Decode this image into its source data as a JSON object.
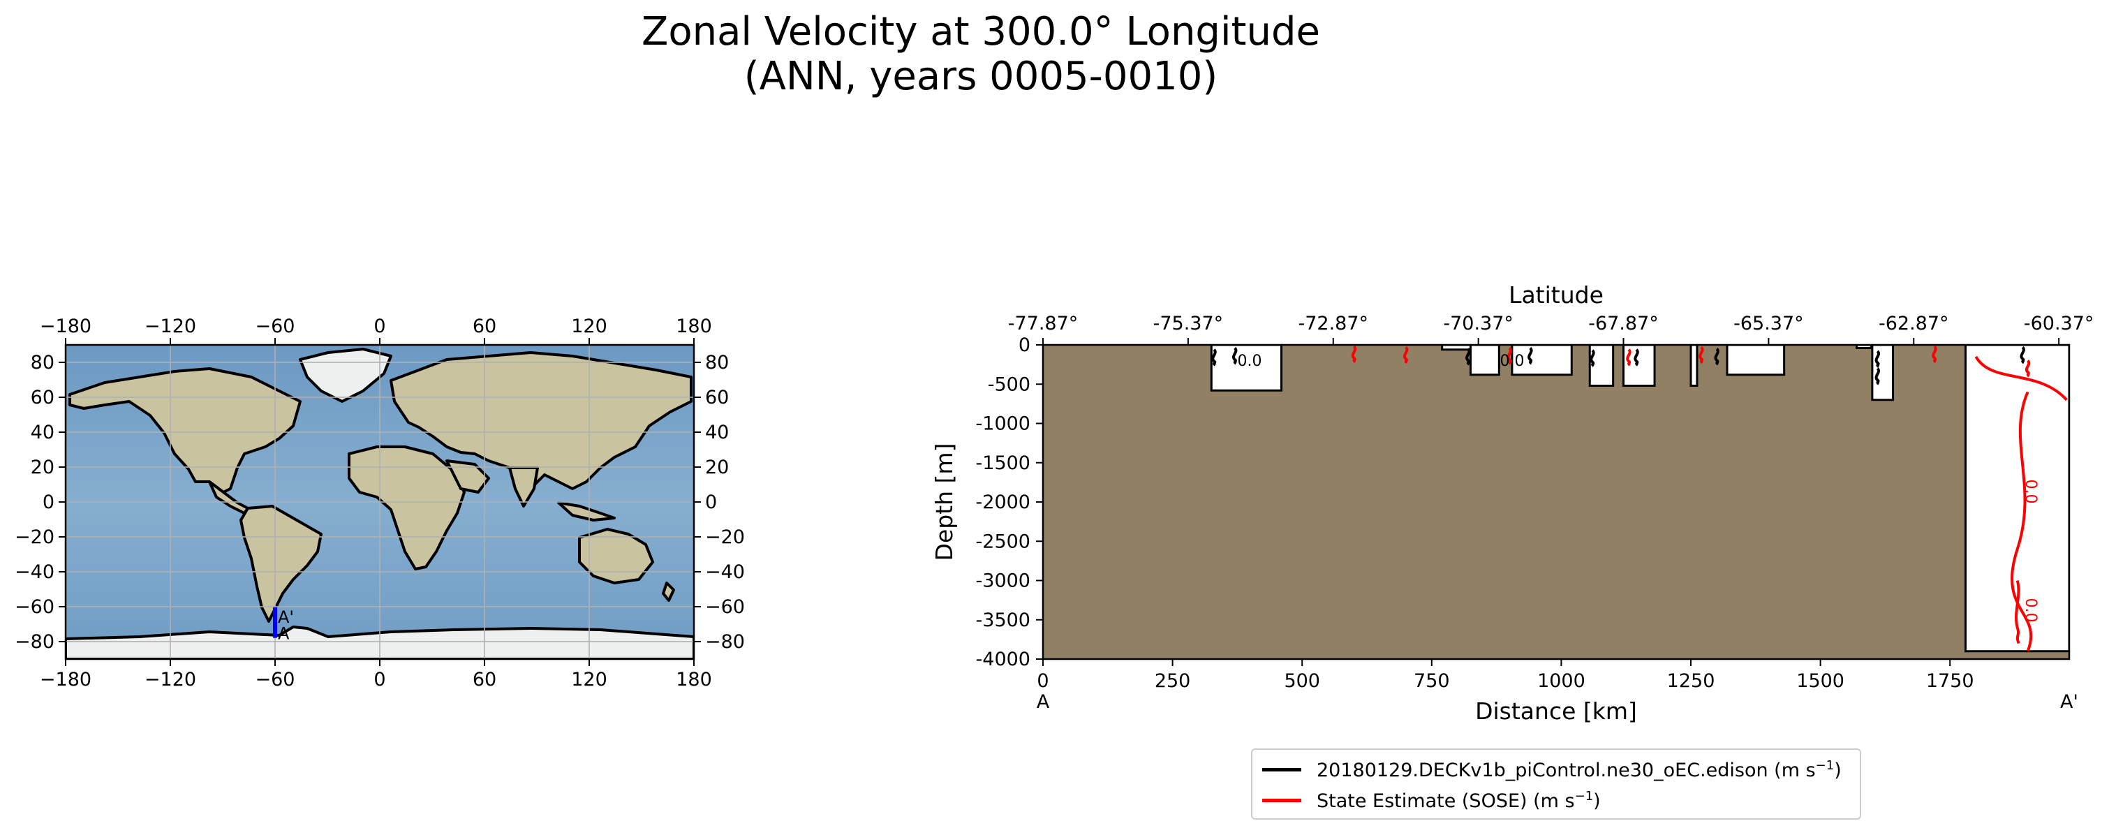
{
  "title": {
    "line1": "Zonal Velocity at 300.0° Longitude",
    "line2": "(ANN, years 0005-0010)"
  },
  "colors": {
    "land": "#928064",
    "model": "#000000",
    "obs": "#ff0000",
    "transect": "#0000ff",
    "ocean": "#7fa7c8"
  },
  "chart_data": [
    {
      "type": "map",
      "name": "transect-location-map",
      "projection": "PlateCarree",
      "xlim": [
        -180,
        180
      ],
      "ylim": [
        -90,
        90
      ],
      "x_ticks": [
        -180,
        -120,
        -60,
        0,
        60,
        120,
        180
      ],
      "y_ticks": [
        80,
        60,
        40,
        20,
        0,
        -20,
        -40,
        -60,
        -80
      ],
      "x_tick_labels": [
        "−180",
        "−120",
        "−60",
        "0",
        "60",
        "120",
        "180"
      ],
      "y_tick_labels": [
        "80",
        "60",
        "40",
        "20",
        "0",
        "−20",
        "−40",
        "−60",
        "−80"
      ],
      "grid": true,
      "transect": {
        "longitude": -60,
        "lat_start": -77.87,
        "lat_end": -60.37,
        "start_label": "A",
        "end_label": "A'"
      }
    },
    {
      "type": "contour",
      "name": "transect-section",
      "xlabel": "Distance [km]",
      "ylabel": "Depth [m]",
      "top_xlabel": "Latitude",
      "xlim": [
        0,
        1980
      ],
      "ylim": [
        -4000,
        0
      ],
      "x_ticks": [
        0,
        250,
        500,
        750,
        1000,
        1250,
        1500,
        1750
      ],
      "x_tick_labels": [
        "0",
        "250",
        "500",
        "750",
        "1000",
        "1250",
        "1500",
        "1750"
      ],
      "y_ticks": [
        0,
        -500,
        -1000,
        -1500,
        -2000,
        -2500,
        -3000,
        -3500,
        -4000
      ],
      "y_tick_labels": [
        "0",
        "-500",
        "-1000",
        "-1500",
        "-2000",
        "-2500",
        "-3000",
        "-3500",
        "-4000"
      ],
      "top_ticks_km": [
        0,
        280,
        560,
        840,
        1120,
        1400,
        1680,
        1960
      ],
      "top_tick_labels": [
        "-77.87°",
        "-75.37°",
        "-72.87°",
        "-70.37°",
        "-67.87°",
        "-65.37°",
        "-62.87°",
        "-60.37°"
      ],
      "start_label": "A",
      "end_label": "A'",
      "contour_labels": [
        "0.0",
        "0.0",
        "0.0",
        "0.0"
      ],
      "ocean_columns": [
        {
          "x0": 325,
          "x1": 460,
          "bottom": -580
        },
        {
          "x0": 770,
          "x1": 840,
          "bottom": -60
        },
        {
          "x0": 825,
          "x1": 880,
          "bottom": -380
        },
        {
          "x0": 905,
          "x1": 1020,
          "bottom": -380
        },
        {
          "x0": 1055,
          "x1": 1100,
          "bottom": -520
        },
        {
          "x0": 1120,
          "x1": 1180,
          "bottom": -520
        },
        {
          "x0": 1250,
          "x1": 1262,
          "bottom": -520
        },
        {
          "x0": 1320,
          "x1": 1430,
          "bottom": -380
        },
        {
          "x0": 1570,
          "x1": 1598,
          "bottom": -40
        },
        {
          "x0": 1600,
          "x1": 1640,
          "bottom": -700
        },
        {
          "x0": 1780,
          "x1": 1980,
          "bottom": -3900
        }
      ],
      "series": [
        {
          "name": "20180129.DECKv1b_piControl.ne30_oEC.edison (m s⁻¹)",
          "label_main": "20180129.DECKv1b_piControl.ne30_oEC.edison (m s",
          "label_unit": "−1",
          "label_close": ")",
          "color": "#000000",
          "zero_contours_km": [
            [
              330,
              -60
            ],
            [
              370,
              -40
            ],
            [
              820,
              -50
            ],
            [
              940,
              -40
            ],
            [
              1060,
              -70
            ],
            [
              1145,
              -60
            ],
            [
              1300,
              -50
            ],
            [
              1610,
              -80
            ],
            [
              1610,
              -300
            ],
            [
              1890,
              -30
            ]
          ]
        },
        {
          "name": "State Estimate (SOSE) (m s⁻¹)",
          "label_main": "State Estimate (SOSE) (m s",
          "label_unit": "−1",
          "label_close": ")",
          "color": "#ff0000",
          "zero_contours_km": [
            [
              600,
              -20
            ],
            [
              700,
              -30
            ],
            [
              900,
              -40
            ],
            [
              1130,
              -60
            ],
            [
              1270,
              -30
            ],
            [
              1720,
              -20
            ],
            [
              1900,
              -200
            ],
            [
              1880,
              -3000
            ]
          ]
        }
      ]
    }
  ]
}
